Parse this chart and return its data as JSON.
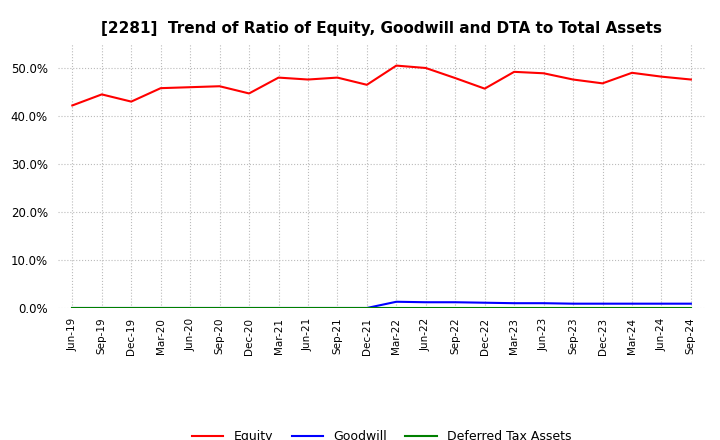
{
  "title": "[2281]  Trend of Ratio of Equity, Goodwill and DTA to Total Assets",
  "x_labels": [
    "Jun-19",
    "Sep-19",
    "Dec-19",
    "Mar-20",
    "Jun-20",
    "Sep-20",
    "Dec-20",
    "Mar-21",
    "Jun-21",
    "Sep-21",
    "Dec-21",
    "Mar-22",
    "Jun-22",
    "Sep-22",
    "Dec-22",
    "Mar-23",
    "Jun-23",
    "Sep-23",
    "Dec-23",
    "Mar-24",
    "Jun-24",
    "Sep-24"
  ],
  "equity": [
    0.422,
    0.445,
    0.43,
    0.458,
    0.46,
    0.462,
    0.447,
    0.48,
    0.476,
    0.48,
    0.465,
    0.505,
    0.5,
    0.479,
    0.457,
    0.492,
    0.489,
    0.476,
    0.468,
    0.49,
    0.482,
    0.476
  ],
  "goodwill": [
    0.0,
    0.0,
    0.0,
    0.0,
    0.0,
    0.0,
    0.0,
    0.0,
    0.0,
    0.0,
    0.0,
    0.013,
    0.012,
    0.012,
    0.011,
    0.01,
    0.01,
    0.009,
    0.009,
    0.009,
    0.009,
    0.009
  ],
  "dta": [
    0.0,
    0.0,
    0.0,
    0.0,
    0.0,
    0.0,
    0.0,
    0.0,
    0.0,
    0.0,
    0.0,
    0.0,
    0.0,
    0.0,
    0.0,
    0.0,
    0.0,
    0.0,
    0.0,
    0.0,
    0.0,
    0.0
  ],
  "equity_color": "#ff0000",
  "goodwill_color": "#0000ff",
  "dta_color": "#008000",
  "ylim": [
    0.0,
    0.55
  ],
  "yticks": [
    0.0,
    0.1,
    0.2,
    0.3,
    0.4,
    0.5
  ],
  "background_color": "#ffffff",
  "grid_color": "#aaaaaa",
  "title_fontsize": 11,
  "legend_labels": [
    "Equity",
    "Goodwill",
    "Deferred Tax Assets"
  ]
}
